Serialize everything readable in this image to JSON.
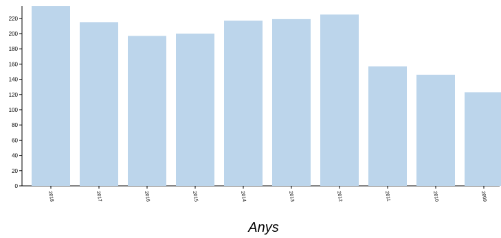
{
  "chart_data": {
    "type": "bar",
    "categories": [
      "2018",
      "2017",
      "2016",
      "2015",
      "2014",
      "2013",
      "2012",
      "2011",
      "2010",
      "2009"
    ],
    "values": [
      236,
      215,
      197,
      200,
      217,
      219,
      225,
      157,
      146,
      123
    ],
    "xlabel": "Anys",
    "ylabel": "",
    "ylim": [
      0,
      236
    ],
    "yticks": [
      0,
      20,
      40,
      60,
      80,
      100,
      120,
      140,
      160,
      180,
      200,
      220
    ],
    "grid": false,
    "bar_color": "#bcd5eb"
  }
}
